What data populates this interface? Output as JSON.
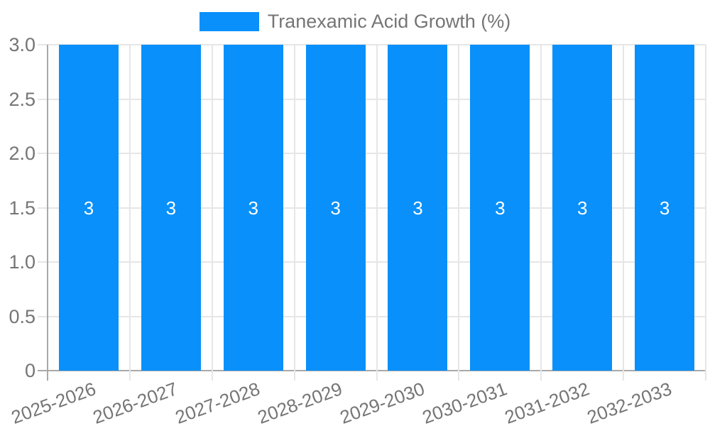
{
  "chart_data": {
    "type": "bar",
    "title": "",
    "legend": {
      "label": "Tranexamic Acid Growth (%)",
      "position": "top"
    },
    "categories": [
      "2025-2026",
      "2026-2027",
      "2027-2028",
      "2028-2029",
      "2029-2030",
      "2030-2031",
      "2031-2032",
      "2032-2033"
    ],
    "series": [
      {
        "name": "Tranexamic Acid Growth (%)",
        "values": [
          3,
          3,
          3,
          3,
          3,
          3,
          3,
          3
        ]
      }
    ],
    "bar_value_labels": [
      "3",
      "3",
      "3",
      "3",
      "3",
      "3",
      "3",
      "3"
    ],
    "xlabel": "",
    "ylabel": "",
    "ylim": [
      0,
      3
    ],
    "ytick_labels": [
      "0",
      "0.5",
      "1.0",
      "1.5",
      "2.0",
      "2.5",
      "3.0"
    ],
    "grid": true,
    "colors": {
      "bar": "#0990fa",
      "grid": "#e6e6e6",
      "axis": "#a8a8a8",
      "tick_text": "#757575",
      "value_label": "#ffffff"
    }
  }
}
